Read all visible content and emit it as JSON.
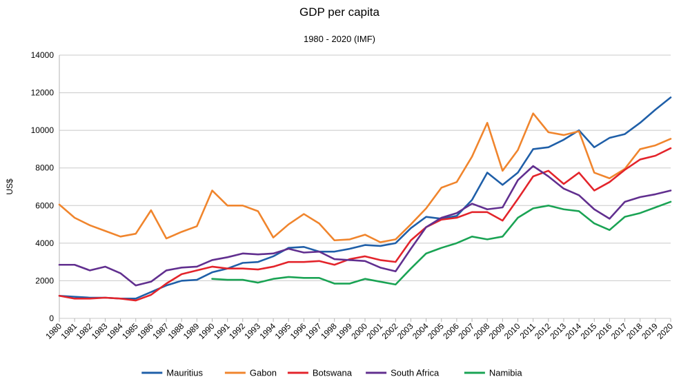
{
  "chart_data": {
    "type": "line",
    "title": "GDP per capita",
    "subtitle": "1980 - 2020 (IMF)",
    "xlabel": "",
    "ylabel": "US$",
    "ylim": [
      0,
      14000
    ],
    "yticks": [
      "0",
      "2000",
      "4000",
      "6000",
      "8000",
      "10000",
      "12000",
      "14000"
    ],
    "grid": true,
    "legend_position": "bottom",
    "x": [
      "1980",
      "1981",
      "1982",
      "1983",
      "1984",
      "1985",
      "1986",
      "1987",
      "1988",
      "1989",
      "1990",
      "1991",
      "1992",
      "1993",
      "1994",
      "1995",
      "1996",
      "1997",
      "1998",
      "1999",
      "2000",
      "2001",
      "2002",
      "2003",
      "2004",
      "2005",
      "2006",
      "2007",
      "2008",
      "2009",
      "2010",
      "2011",
      "2012",
      "2013",
      "2014",
      "2015",
      "2016",
      "2017",
      "2018",
      "2019",
      "2020"
    ],
    "series": [
      {
        "name": "Mauritius",
        "color": "#1f5fa8",
        "values": [
          1200,
          1150,
          1100,
          1100,
          1050,
          1050,
          1400,
          1750,
          2000,
          2050,
          2450,
          2650,
          2950,
          3000,
          3300,
          3750,
          3800,
          3550,
          3550,
          3700,
          3900,
          3850,
          4000,
          4800,
          5400,
          5300,
          5450,
          6300,
          7750,
          7100,
          7750,
          9000,
          9100,
          9500,
          10000,
          9100,
          9600,
          9800,
          10400,
          11100,
          11750
        ]
      },
      {
        "name": "Gabon",
        "color": "#f0852d",
        "values": [
          6050,
          5350,
          4950,
          4650,
          4350,
          4500,
          5750,
          4250,
          4600,
          4900,
          6800,
          6000,
          6000,
          5700,
          4300,
          5000,
          5550,
          5050,
          4150,
          4200,
          4450,
          4050,
          4200,
          5000,
          5850,
          6950,
          7250,
          8600,
          10400,
          7850,
          8950,
          10900,
          9900,
          9750,
          9950,
          7750,
          7450,
          7950,
          9000,
          9200,
          9550
        ]
      },
      {
        "name": "Botswana",
        "color": "#e3242b",
        "values": [
          1200,
          1050,
          1050,
          1100,
          1050,
          950,
          1250,
          1850,
          2350,
          2550,
          2750,
          2650,
          2650,
          2600,
          2750,
          3000,
          3000,
          3050,
          2850,
          3150,
          3300,
          3100,
          3000,
          4150,
          4850,
          5250,
          5350,
          5650,
          5650,
          5200,
          6350,
          7550,
          7850,
          7150,
          7750,
          6800,
          7250,
          7900,
          8450,
          8650,
          9050
        ]
      },
      {
        "name": "South Africa",
        "color": "#612f8f",
        "values": [
          2850,
          2850,
          2550,
          2750,
          2400,
          1750,
          1950,
          2550,
          2700,
          2750,
          3100,
          3250,
          3450,
          3400,
          3450,
          3700,
          3500,
          3550,
          3150,
          3100,
          3050,
          2700,
          2500,
          3700,
          4850,
          5350,
          5600,
          6100,
          5800,
          5900,
          7350,
          8100,
          7550,
          6900,
          6550,
          5800,
          5300,
          6200,
          6450,
          6600,
          6800
        ]
      },
      {
        "name": "Namibia",
        "color": "#1aa354",
        "values": [
          null,
          null,
          null,
          null,
          null,
          null,
          null,
          null,
          null,
          null,
          2100,
          2050,
          2050,
          1900,
          2100,
          2200,
          2150,
          2150,
          1850,
          1850,
          2100,
          1950,
          1800,
          2650,
          3450,
          3750,
          4000,
          4350,
          4200,
          4350,
          5350,
          5850,
          6000,
          5800,
          5700,
          5050,
          4700,
          5400,
          5600,
          5900,
          6200
        ]
      }
    ]
  }
}
